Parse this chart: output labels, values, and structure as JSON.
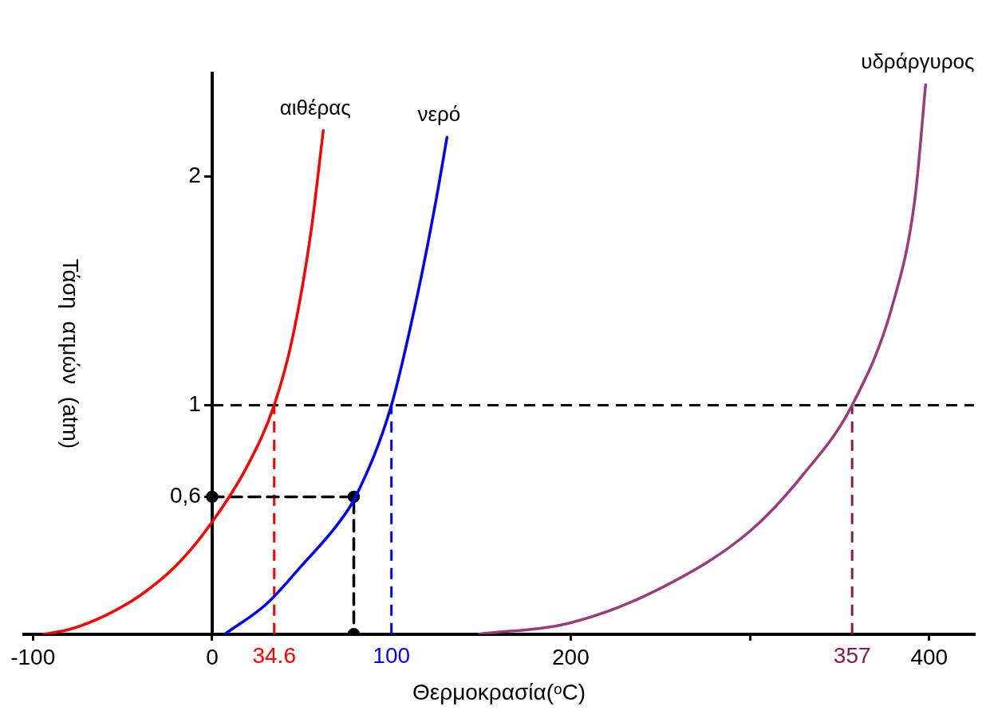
{
  "chart_data": {
    "type": "line",
    "xlabel": "Θερμοκρασία(ᵒC)",
    "ylabel": "Τάση  ατμών  (atm)",
    "xlim": [
      -105,
      425
    ],
    "ylim": [
      0,
      2.45
    ],
    "xticks": [
      -100,
      0,
      200,
      {
        "value": 300,
        "label": null
      },
      400
    ],
    "yticks": [
      {
        "value": 0.6,
        "label": "0,6"
      },
      1,
      2
    ],
    "grid": false,
    "legend": false,
    "series": [
      {
        "name": "αιθέρας",
        "color": "#ff0000",
        "marker": "none",
        "line_style": "solid",
        "x": [
          -94,
          -80,
          -60,
          -40,
          -20,
          0,
          20,
          34.6,
          45,
          55,
          62
        ],
        "values": [
          0,
          0.02,
          0.08,
          0.17,
          0.3,
          0.49,
          0.74,
          1,
          1.3,
          1.75,
          2.2
        ]
      },
      {
        "name": "νερό",
        "color": "#0000ff",
        "marker": "none",
        "line_style": "solid",
        "x": [
          7,
          30,
          50,
          70,
          80,
          100,
          115,
          125,
          131
        ],
        "values": [
          0,
          0.13,
          0.3,
          0.48,
          0.6,
          1,
          1.5,
          1.9,
          2.17
        ]
      },
      {
        "name": "υδράργυρος",
        "color": "#9b3b7a",
        "marker": "none",
        "line_style": "solid",
        "x": [
          149,
          200,
          250,
          300,
          330,
          357,
          380,
          392,
          398
        ],
        "values": [
          0,
          0.05,
          0.2,
          0.45,
          0.7,
          1,
          1.45,
          1.9,
          2.4
        ]
      },
      {
        "color": "#000000",
        "marker": "circle",
        "line_style": "dashed",
        "x": [
          0,
          79,
          79
        ],
        "values": [
          0.6,
          0.6,
          0
        ]
      }
    ],
    "ref_lines": [
      {
        "axis": "y",
        "value": 1,
        "label": null,
        "color": "#000000",
        "line_style": "dashed"
      },
      {
        "axis": "x",
        "value": 34.6,
        "label": "34.6",
        "color": "#ff0000",
        "line_style": "dashed"
      },
      {
        "axis": "x",
        "value": 100,
        "label": "100",
        "color": "#0000ff",
        "line_style": "dashed"
      },
      {
        "axis": "x",
        "value": 357,
        "label": "357",
        "color": "#8b1a4a",
        "line_style": "dashed"
      }
    ]
  }
}
